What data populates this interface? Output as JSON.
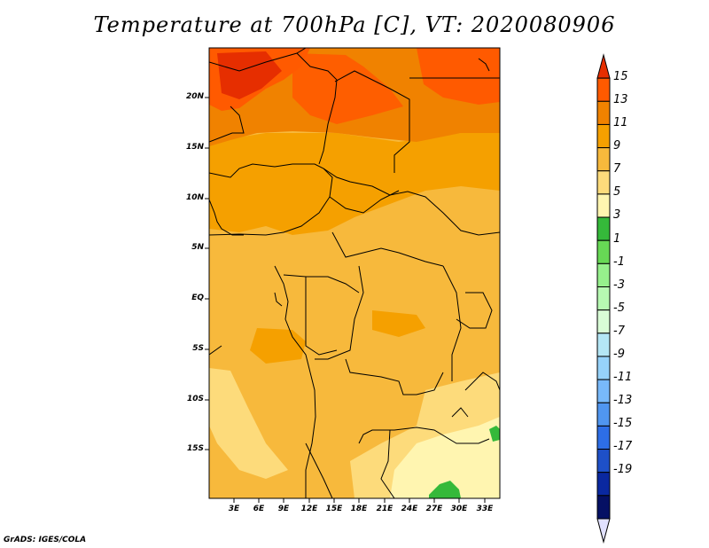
{
  "title": "Temperature at 700hPa [C], VT: 2020080906",
  "credit": "GrADS: IGES/COLA",
  "map": {
    "lat_labels": [
      "20N",
      "15N",
      "10N",
      "5N",
      "EQ",
      "5S",
      "10S",
      "15S"
    ],
    "lon_labels": [
      "3E",
      "6E",
      "9E",
      "12E",
      "15E",
      "18E",
      "21E",
      "24E",
      "27E",
      "30E",
      "33E"
    ]
  },
  "colorbar": {
    "labels": [
      "15",
      "13",
      "11",
      "9",
      "7",
      "5",
      "3",
      "1",
      "-1",
      "-3",
      "-5",
      "-7",
      "-9",
      "-11",
      "-13",
      "-15",
      "-17",
      "-19"
    ],
    "colors": [
      "#e62e00",
      "#ff5a00",
      "#f08200",
      "#f5a000",
      "#f7b93c",
      "#fddb7b",
      "#fff5b0",
      "#35b93a",
      "#67d855",
      "#96f08c",
      "#b7f9b2",
      "#d9fcd6",
      "#b4e6f5",
      "#96d2fa",
      "#78b9fa",
      "#5096f0",
      "#2d6ee6",
      "#1e50c8",
      "#0a28a0",
      "#051064",
      "#e1e1ff"
    ]
  }
}
